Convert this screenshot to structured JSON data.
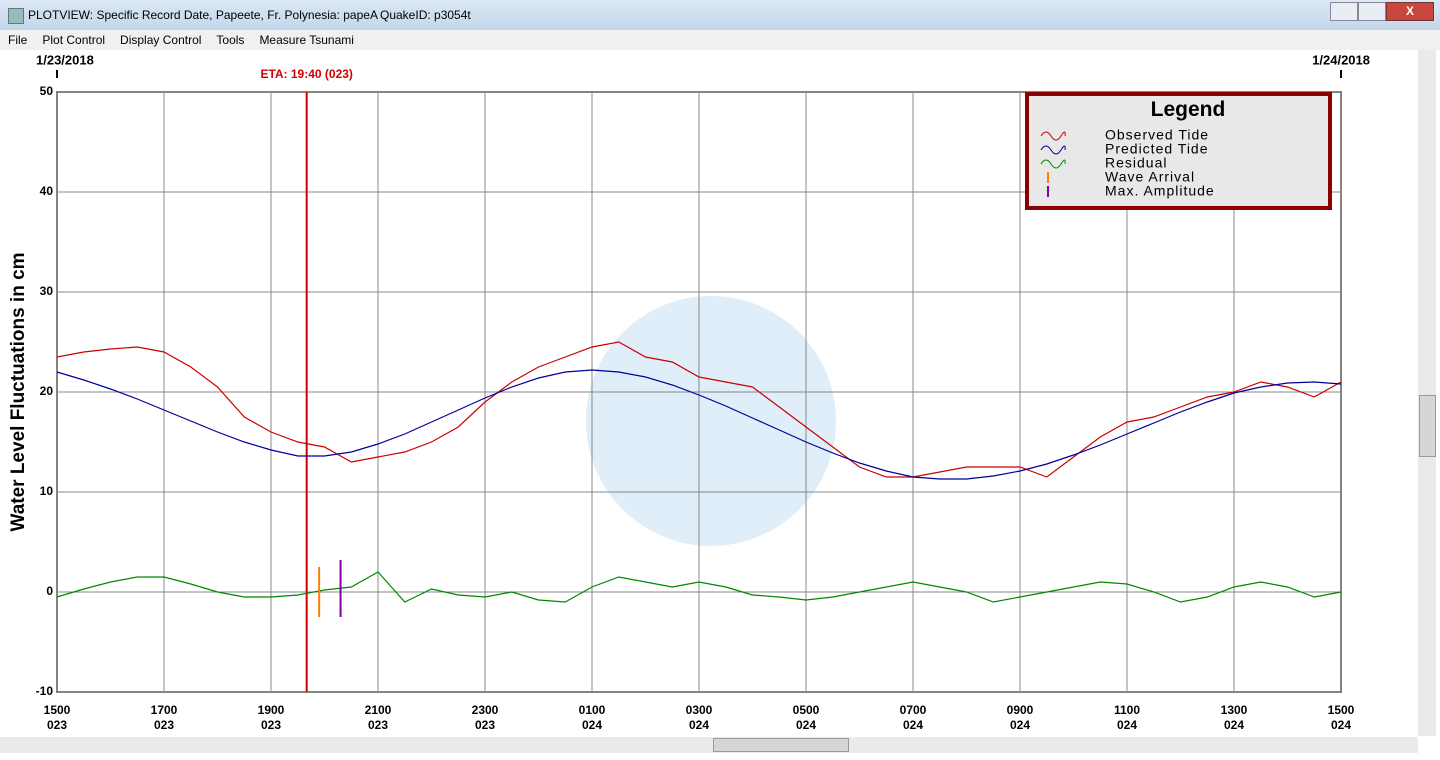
{
  "window": {
    "title": "PLOTVIEW: Specific Record Date, Papeete, Fr. Polynesia: papeA",
    "quake_id": "QuakeID: p3054t"
  },
  "menu": [
    "File",
    "Plot Control",
    "Display Control",
    "Tools",
    "Measure Tsunami"
  ],
  "chart_data": {
    "type": "line",
    "ylabel": "Water Level Fluctuations in cm",
    "legend_title": "Legend",
    "legend": "upper right",
    "start_date": "1/23/2018",
    "end_date": "1/24/2018",
    "eta": {
      "label": "ETA: 19:40 (023)",
      "x": 4.667,
      "color": "#d40000"
    },
    "grid": true,
    "x": [
      0,
      0.5,
      1,
      1.5,
      2,
      2.5,
      3,
      3.5,
      4,
      4.5,
      5,
      5.5,
      6,
      6.5,
      7,
      7.5,
      8,
      8.5,
      9,
      9.5,
      10,
      10.5,
      11,
      11.5,
      12,
      12.5,
      13,
      13.5,
      14,
      14.5,
      15,
      15.5,
      16,
      16.5,
      17,
      17.5,
      18,
      18.5,
      19,
      19.5,
      20,
      20.5,
      21,
      21.5,
      22,
      22.5,
      23,
      23.5,
      24
    ],
    "xlim": [
      0,
      24
    ],
    "xticks": [
      {
        "value": 0,
        "label": "1500\n023"
      },
      {
        "value": 2,
        "label": "1700\n023"
      },
      {
        "value": 4,
        "label": "1900\n023"
      },
      {
        "value": 6,
        "label": "2100\n023"
      },
      {
        "value": 8,
        "label": "2300\n023"
      },
      {
        "value": 10,
        "label": "0100\n024"
      },
      {
        "value": 12,
        "label": "0300\n024"
      },
      {
        "value": 14,
        "label": "0500\n024"
      },
      {
        "value": 16,
        "label": "0700\n024"
      },
      {
        "value": 18,
        "label": "0900\n024"
      },
      {
        "value": 20,
        "label": "1100\n024"
      },
      {
        "value": 22,
        "label": "1300\n024"
      },
      {
        "value": 24,
        "label": "1500\n024"
      }
    ],
    "ylim": [
      -10,
      50
    ],
    "yticks": [
      -10,
      0,
      10,
      20,
      30,
      40,
      50
    ],
    "series": [
      {
        "name": "Observed Tide",
        "color": "#cc0000",
        "values": [
          23.5,
          24,
          24.3,
          24.5,
          24,
          22.5,
          20.5,
          17.5,
          16,
          15,
          14.5,
          13,
          13.5,
          14,
          15,
          16.5,
          19,
          21,
          22.5,
          23.5,
          24.5,
          25,
          23.5,
          23,
          21.5,
          21,
          20.5,
          18.5,
          16.5,
          14.5,
          12.5,
          11.5,
          11.5,
          12,
          12.5,
          12.5,
          12.5,
          11.5,
          13.5,
          15.5,
          17,
          17.5,
          18.5,
          19.5,
          20,
          21,
          20.5,
          19.5,
          21
        ]
      },
      {
        "name": "Predicted Tide",
        "color": "#000099",
        "values": [
          22,
          21.2,
          20.3,
          19.3,
          18.2,
          17.1,
          16,
          15,
          14.2,
          13.6,
          13.6,
          14,
          14.8,
          15.8,
          17,
          18.2,
          19.4,
          20.5,
          21.4,
          22,
          22.2,
          22,
          21.5,
          20.7,
          19.7,
          18.6,
          17.4,
          16.2,
          15,
          13.9,
          12.9,
          12.1,
          11.5,
          11.3,
          11.3,
          11.6,
          12.1,
          12.8,
          13.7,
          14.7,
          15.8,
          16.9,
          18,
          19,
          19.9,
          20.5,
          20.9,
          21,
          20.8
        ]
      },
      {
        "name": "Residual",
        "color": "#008800",
        "values": [
          -0.5,
          0.3,
          1,
          1.5,
          1.5,
          0.8,
          0,
          -0.5,
          -0.5,
          -0.3,
          0.2,
          0.5,
          2,
          -1,
          0.3,
          -0.3,
          -0.5,
          0,
          -0.8,
          -1,
          0.5,
          1.5,
          1,
          0.5,
          1,
          0.5,
          -0.3,
          -0.5,
          -0.8,
          -0.5,
          0,
          0.5,
          1,
          0.5,
          0,
          -1,
          -0.5,
          0,
          0.5,
          1,
          0.8,
          0,
          -1,
          -0.5,
          0.5,
          1,
          0.5,
          -0.5,
          0
        ]
      }
    ],
    "markers": [
      {
        "name": "Wave Arrival",
        "color": "#ff8000",
        "x": 4.9,
        "values": [
          -2.5,
          2.5
        ]
      },
      {
        "name": "Max. Amplitude",
        "color": "#8000a0",
        "x": 5.3,
        "values": [
          -2.5,
          3.2
        ]
      }
    ]
  }
}
